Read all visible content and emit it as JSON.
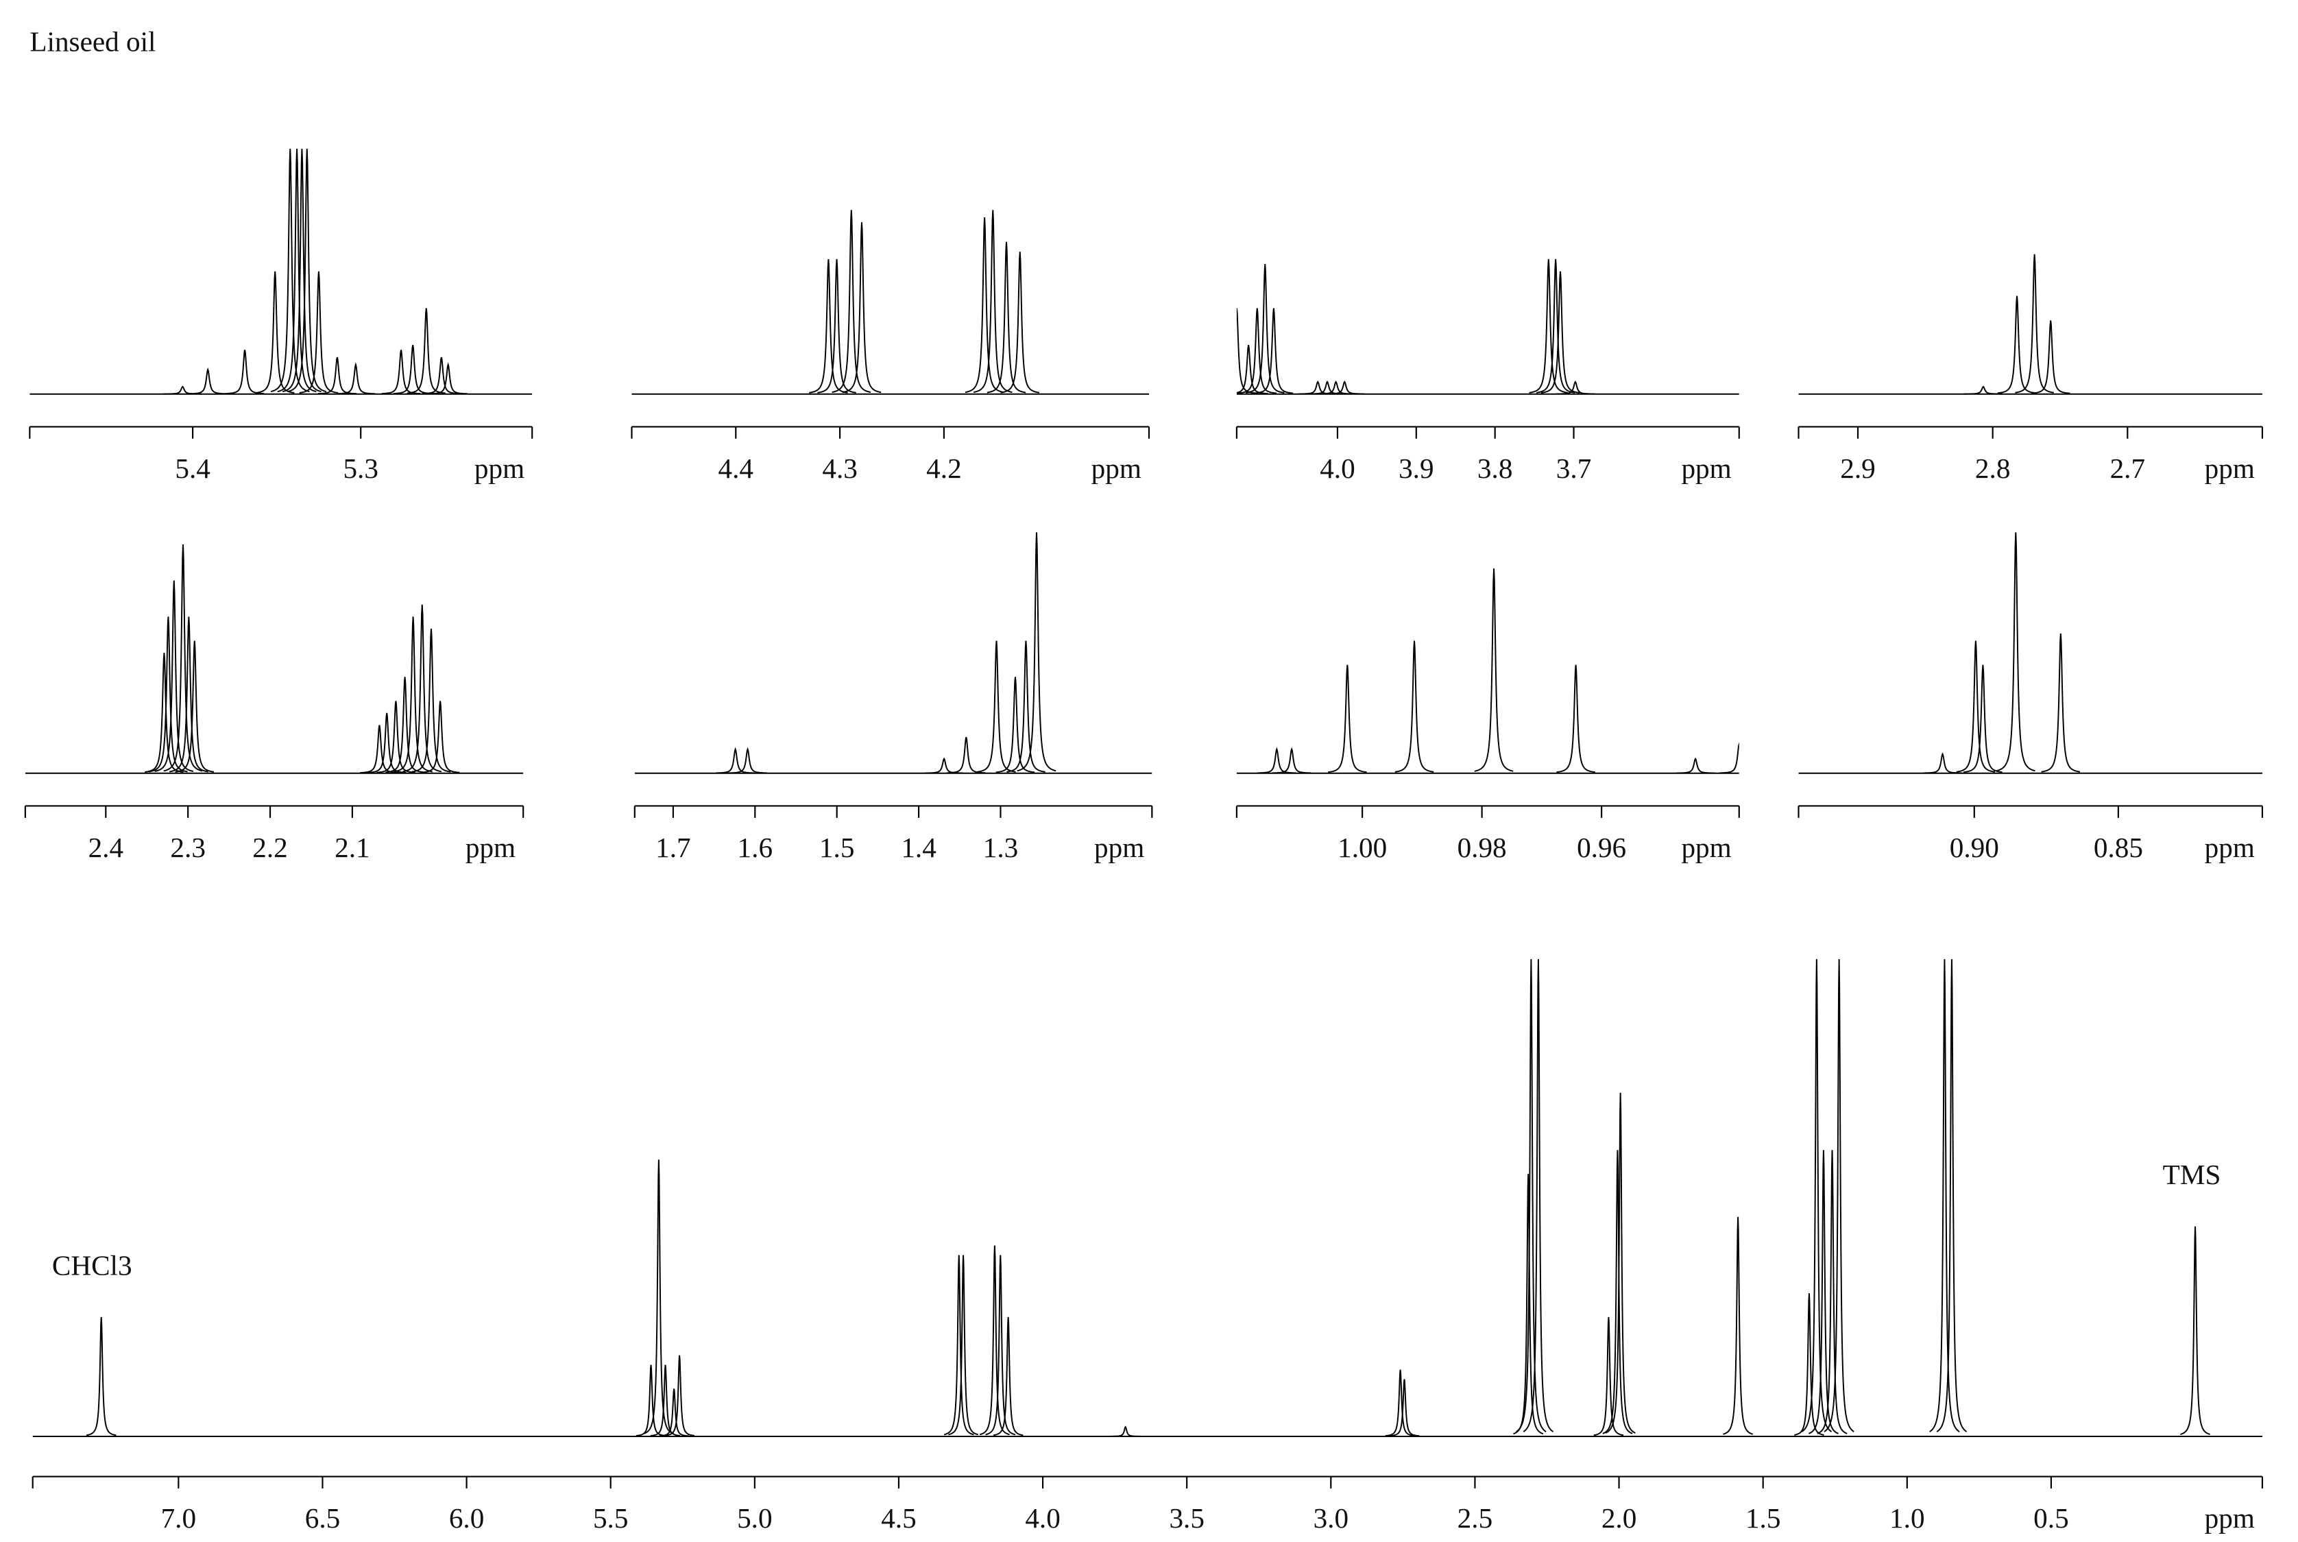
{
  "chart_data": [
    {
      "type": "spectrum",
      "title": "Linseed oil",
      "xlabel": "ppm",
      "xlim": [
        5.497,
        5.198
      ],
      "ylim": [
        0,
        100
      ],
      "xticks": [
        5.4,
        5.3
      ],
      "x": [
        5.406,
        5.391,
        5.369,
        5.351,
        5.342,
        5.338,
        5.335,
        5.332,
        5.325,
        5.314,
        5.303,
        5.276,
        5.269,
        5.261,
        5.252,
        5.248
      ],
      "values": [
        3,
        10,
        18,
        50,
        100,
        100,
        100,
        100,
        50,
        15,
        12,
        18,
        20,
        35,
        15,
        12
      ]
    },
    {
      "type": "spectrum",
      "xlabel": "ppm",
      "xlim": [
        4.5,
        4.003
      ],
      "ylim": [
        0,
        100
      ],
      "xticks": [
        4.4,
        4.3,
        4.2
      ],
      "x": [
        4.311,
        4.303,
        4.289,
        4.279,
        4.161,
        4.153,
        4.14,
        4.127
      ],
      "values": [
        55,
        55,
        75,
        70,
        72,
        75,
        62,
        58
      ]
    },
    {
      "type": "spectrum",
      "xlabel": "ppm",
      "xlim": [
        4.128,
        3.49
      ],
      "ylim": [
        0,
        100
      ],
      "xticks": [
        {
          "value": 4,
          "label": "4.0"
        },
        3.9,
        3.8,
        3.7
      ],
      "x": [
        4.128,
        4.113,
        4.102,
        4.092,
        4.081,
        4.025,
        4.013,
        4.002,
        3.991,
        3.732,
        3.723,
        3.717,
        3.698
      ],
      "values": [
        35,
        20,
        35,
        53,
        35,
        5,
        5,
        5,
        5,
        55,
        55,
        50,
        5
      ]
    },
    {
      "type": "spectrum",
      "xlabel": "ppm",
      "xlim": [
        2.944,
        2.6
      ],
      "ylim": [
        0,
        100
      ],
      "xticks": [
        2.9,
        2.8,
        2.7
      ],
      "x": [
        2.807,
        2.782,
        2.769,
        2.757
      ],
      "values": [
        3,
        40,
        57,
        30
      ]
    },
    {
      "type": "spectrum",
      "xlabel": "ppm",
      "xlim": [
        2.498,
        1.892
      ],
      "ylim": [
        0,
        100
      ],
      "xticks": [
        2.4,
        2.3,
        2.2,
        2.1
      ],
      "x": [
        2.329,
        2.324,
        2.317,
        2.306,
        2.299,
        2.292,
        2.067,
        2.058,
        2.047,
        2.036,
        2.026,
        2.015,
        2.004,
        1.993
      ],
      "values": [
        50,
        65,
        80,
        95,
        65,
        55,
        20,
        25,
        30,
        40,
        65,
        70,
        60,
        30
      ]
    },
    {
      "type": "spectrum",
      "xlabel": "ppm",
      "xlim": [
        1.747,
        1.115
      ],
      "ylim": [
        0,
        100
      ],
      "xticks": [
        1.7,
        1.6,
        1.5,
        1.4,
        1.3
      ],
      "x": [
        1.624,
        1.609,
        1.369,
        1.342,
        1.305,
        1.282,
        1.269,
        1.256
      ],
      "values": [
        10,
        10,
        6,
        15,
        55,
        40,
        55,
        100
      ]
    },
    {
      "type": "spectrum",
      "xlabel": "ppm",
      "xlim": [
        1.021,
        0.937
      ],
      "ylim": [
        0,
        100
      ],
      "xticks": [
        {
          "value": 1,
          "label": "1.00"
        },
        {
          "value": 0.98,
          "label": "0.98"
        },
        {
          "value": 0.96,
          "label": "0.96"
        }
      ],
      "x": [
        1.0143,
        1.0118,
        1.0025,
        0.9913,
        0.978,
        0.9643,
        0.9443,
        0.937
      ],
      "values": [
        10,
        10,
        45,
        55,
        85,
        45,
        6,
        12
      ]
    },
    {
      "type": "spectrum",
      "xlabel": "ppm",
      "xlim": [
        0.961,
        0.8
      ],
      "ylim": [
        0,
        100
      ],
      "xticks": [
        {
          "value": 0.9,
          "label": "0.90"
        },
        0.85
      ],
      "x": [
        0.911,
        0.8995,
        0.897,
        0.8856,
        0.87
      ],
      "values": [
        8,
        55,
        45,
        100,
        58
      ]
    },
    {
      "type": "spectrum",
      "xlabel": "ppm",
      "xlim": [
        7.506,
        -0.233
      ],
      "ylim": [
        0,
        100
      ],
      "annotations": [
        "CHCl3",
        "TMS"
      ],
      "xticks": [
        {
          "value": 7,
          "label": "7.0"
        },
        6.5,
        {
          "value": 6,
          "label": "6.0"
        },
        5.5,
        {
          "value": 5,
          "label": "5.0"
        },
        4.5,
        {
          "value": 4,
          "label": "4.0"
        },
        3.5,
        {
          "value": 3,
          "label": "3.0"
        },
        2.5,
        {
          "value": 2,
          "label": "2.0"
        },
        1.5,
        {
          "value": 1,
          "label": "1.0"
        },
        0.5
      ],
      "x": [
        7.268,
        5.36,
        5.333,
        5.31,
        5.28,
        5.261,
        4.291,
        4.276,
        4.167,
        4.147,
        4.12,
        3.713,
        2.759,
        2.745,
        2.315,
        2.305,
        2.28,
        2.036,
        2.005,
        1.995,
        1.587,
        1.34,
        1.314,
        1.29,
        1.26,
        1.236,
        0.87,
        0.845,
        0
      ],
      "values": [
        25,
        15,
        58,
        15,
        10,
        17,
        38,
        38,
        40,
        38,
        25,
        2,
        14,
        12,
        55,
        100,
        100,
        25,
        60,
        72,
        46,
        30,
        100,
        60,
        60,
        100,
        100,
        100,
        44
      ]
    }
  ]
}
